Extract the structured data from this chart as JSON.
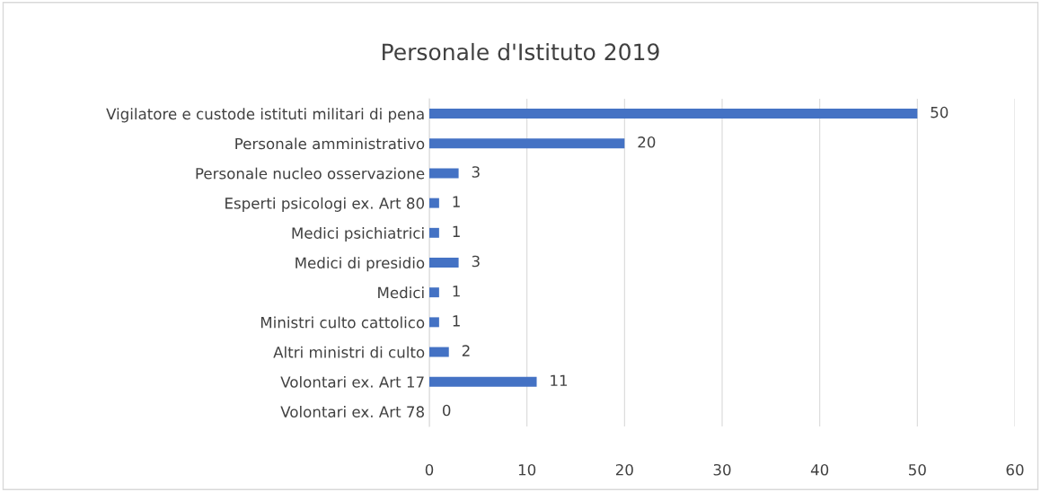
{
  "chart_data": {
    "type": "bar",
    "orientation": "horizontal",
    "title": "Personale d'Istituto 2019",
    "categories": [
      "Vigilatore e custode istituti militari di pena",
      "Personale amministrativo",
      "Personale nucleo osservazione",
      "Esperti psicologi ex. Art 80",
      "Medici psichiatrici",
      "Medici di presidio",
      "Medici",
      "Ministri culto cattolico",
      "Altri ministri di culto",
      "Volontari ex. Art 17",
      "Volontari ex. Art 78"
    ],
    "values": [
      50,
      20,
      3,
      1,
      1,
      3,
      1,
      1,
      2,
      11,
      0
    ],
    "color": "#4472c4",
    "xlim": [
      0,
      60
    ],
    "xticks": [
      0,
      10,
      20,
      30,
      40,
      50,
      60
    ],
    "grid": "x",
    "data_labels": true,
    "legend": false
  }
}
